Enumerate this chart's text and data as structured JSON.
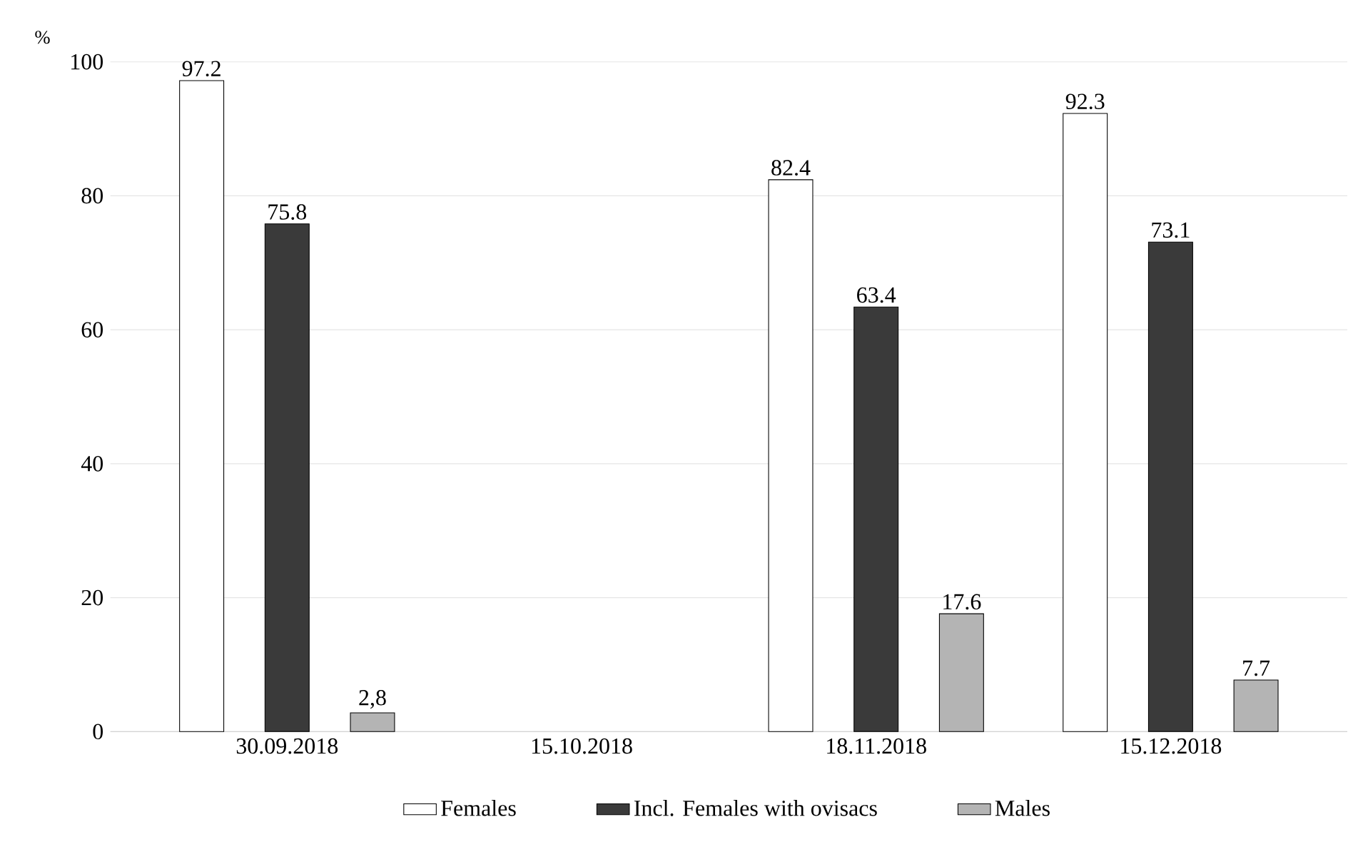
{
  "chart_data": {
    "type": "bar",
    "ylabel": "%",
    "categories": [
      "30.09.2018",
      "15.10.2018",
      "18.11.2018",
      "15.12.2018"
    ],
    "series": [
      {
        "name": "Females",
        "color": "#ffffff",
        "values": [
          97.2,
          null,
          82.4,
          92.3
        ],
        "value_labels": [
          "97.2",
          null,
          "82.4",
          "92.3"
        ]
      },
      {
        "name": "Incl. Females with ovisacs",
        "color": "#3a3a3a",
        "values": [
          75.8,
          null,
          63.4,
          73.1
        ],
        "value_labels": [
          "75.8",
          null,
          "63.4",
          "73.1"
        ]
      },
      {
        "name": "Males",
        "color": "#b4b4b4",
        "values": [
          2.8,
          null,
          17.6,
          7.7
        ],
        "value_labels": [
          "2,8",
          null,
          "17.6",
          "7.7"
        ]
      }
    ],
    "ylim": [
      0,
      100
    ],
    "yticks": [
      0,
      20,
      40,
      60,
      80,
      100
    ],
    "grid": "y",
    "legend": "bottom"
  }
}
